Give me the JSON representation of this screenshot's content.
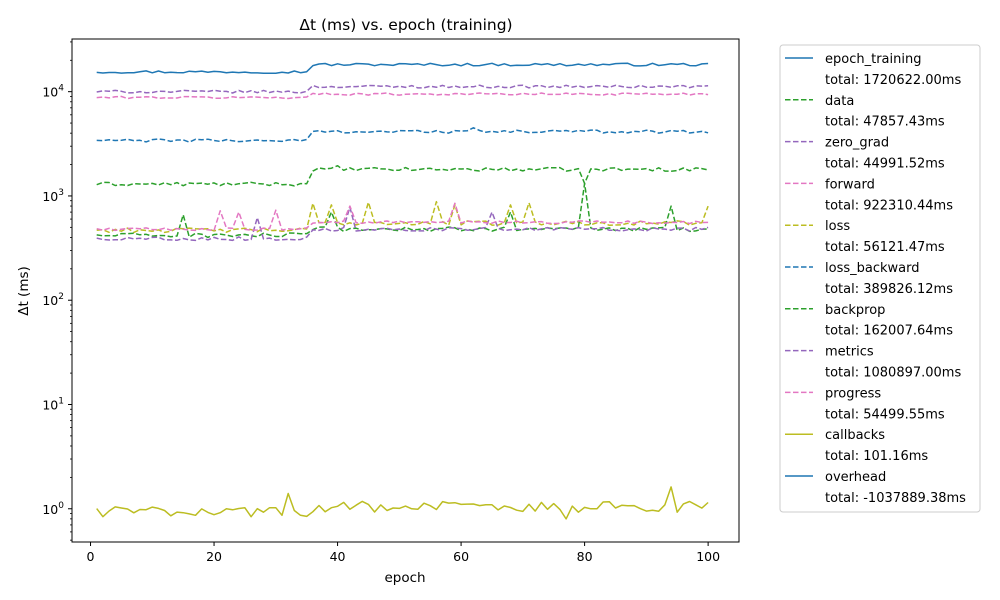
{
  "chart_data": {
    "type": "line",
    "title": "Δt (ms) vs. epoch (training)",
    "xlabel": "epoch",
    "ylabel": "Δt (ms)",
    "yscale": "log",
    "xlim": [
      -3,
      105
    ],
    "ylim": [
      0.48,
      32000
    ],
    "xticks": [
      0,
      20,
      40,
      60,
      80,
      100
    ],
    "yticks": [
      {
        "value": 1,
        "label": "10^0"
      },
      {
        "value": 10,
        "label": "10^1"
      },
      {
        "value": 100,
        "label": "10^2"
      },
      {
        "value": 1000,
        "label": "10^3"
      },
      {
        "value": 10000,
        "label": "10^4"
      }
    ],
    "grid": false,
    "legend_placement": "outside-right",
    "series": [
      {
        "name": "epoch_training",
        "total": "total: 1720622.00ms",
        "color": "#1f77b4",
        "dash": "solid",
        "base": 15500,
        "late_base": 18200,
        "jump_epoch": 36,
        "noise": 0.03,
        "spikes": []
      },
      {
        "name": "data",
        "total": "total: 47857.43ms",
        "color": "#2ca02c",
        "dash": "dashed",
        "base": 1300,
        "late_base": 1800,
        "jump_epoch": 36,
        "noise": 0.04,
        "spikes": [
          [
            80,
            1320
          ],
          [
            40,
            1950
          ]
        ]
      },
      {
        "name": "zero_grad",
        "total": "total: 44991.52ms",
        "color": "#9467bd",
        "dash": "dashed",
        "base": 10000,
        "late_base": 11200,
        "jump_epoch": 36,
        "noise": 0.03,
        "spikes": []
      },
      {
        "name": "forward",
        "total": "total: 922310.44ms",
        "color": "#e377c2",
        "dash": "dashed",
        "base": 8800,
        "late_base": 9500,
        "jump_epoch": 36,
        "noise": 0.025,
        "spikes": []
      },
      {
        "name": "loss",
        "total": "total: 56121.47ms",
        "color": "#bcbd22",
        "dash": "dashed",
        "base": 470,
        "late_base": 550,
        "jump_epoch": 36,
        "noise": 0.05,
        "spikes": [
          [
            36,
            850
          ],
          [
            39,
            820
          ],
          [
            45,
            870
          ],
          [
            56,
            880
          ],
          [
            59,
            820
          ],
          [
            68,
            820
          ],
          [
            71,
            860
          ],
          [
            100,
            800
          ]
        ]
      },
      {
        "name": "loss_backward",
        "total": "total: 389826.12ms",
        "color": "#1f77b4",
        "dash": "dashed",
        "base": 3400,
        "late_base": 4150,
        "jump_epoch": 36,
        "noise": 0.035,
        "spikes": [
          [
            62,
            4500
          ]
        ]
      },
      {
        "name": "backprop",
        "total": "total: 162007.64ms",
        "color": "#2ca02c",
        "dash": "dashed",
        "base": 420,
        "late_base": 480,
        "jump_epoch": 36,
        "noise": 0.05,
        "spikes": [
          [
            15,
            660
          ],
          [
            39,
            700
          ],
          [
            68,
            700
          ],
          [
            80,
            1320
          ],
          [
            94,
            800
          ]
        ]
      },
      {
        "name": "metrics",
        "total": "total: 1080897.00ms",
        "color": "#9467bd",
        "dash": "dashed",
        "base": 390,
        "late_base": 480,
        "jump_epoch": 36,
        "noise": 0.04,
        "spikes": [
          [
            27,
            620
          ],
          [
            42,
            780
          ],
          [
            65,
            700
          ]
        ]
      },
      {
        "name": "progress",
        "total": "total: 54499.55ms",
        "color": "#e377c2",
        "dash": "dashed",
        "base": 480,
        "late_base": 560,
        "jump_epoch": 36,
        "noise": 0.03,
        "spikes": [
          [
            21,
            720
          ],
          [
            24,
            700
          ],
          [
            30,
            730
          ],
          [
            42,
            800
          ],
          [
            59,
            850
          ]
        ]
      },
      {
        "name": "callbacks",
        "total": "total: 101.16ms",
        "color": "#bcbd22",
        "dash": "solid",
        "base": 0.95,
        "late_base": 1.05,
        "jump_epoch": 36,
        "noise": 0.12,
        "spikes": [
          [
            32,
            1.4
          ],
          [
            94,
            1.62
          ],
          [
            77,
            0.8
          ]
        ]
      },
      {
        "name": "overhead",
        "total": "total: -1037889.38ms",
        "color": "#1f77b4",
        "dash": "solid",
        "base": 430,
        "late_base": 470,
        "jump_epoch": 36,
        "noise": 0.05,
        "spikes": [],
        "hidden_line": true
      }
    ]
  }
}
